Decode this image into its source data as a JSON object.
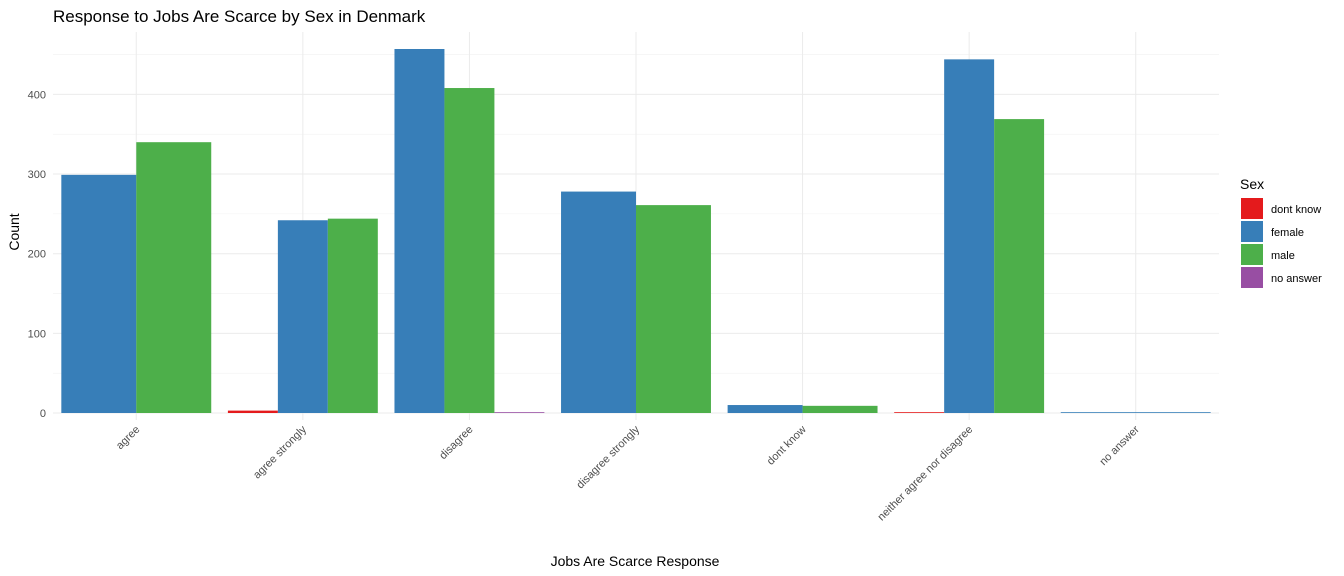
{
  "chart_data": {
    "type": "bar",
    "title": "Response to Jobs Are Scarce by Sex in Denmark",
    "xlabel": "Jobs Are Scarce Response",
    "ylabel": "Count",
    "ylim": [
      0,
      470
    ],
    "yticks": [
      0,
      100,
      200,
      300,
      400
    ],
    "grid": true,
    "legend": {
      "title": "Sex",
      "position": "right"
    },
    "categories": [
      "agree",
      "agree strongly",
      "disagree",
      "disagree strongly",
      "dont know",
      "neither agree nor disagree",
      "no answer"
    ],
    "series": [
      {
        "name": "dont know",
        "color": "#E41A1C",
        "values": [
          0,
          3,
          0,
          0,
          0,
          1,
          0
        ]
      },
      {
        "name": "female",
        "color": "#377EB8",
        "values": [
          299,
          242,
          457,
          278,
          10,
          444,
          1
        ]
      },
      {
        "name": "male",
        "color": "#4DAF4A",
        "values": [
          340,
          244,
          408,
          261,
          9,
          369,
          0
        ]
      },
      {
        "name": "no answer",
        "color": "#984EA3",
        "values": [
          0,
          0,
          1,
          0,
          0,
          0,
          0
        ]
      }
    ]
  }
}
